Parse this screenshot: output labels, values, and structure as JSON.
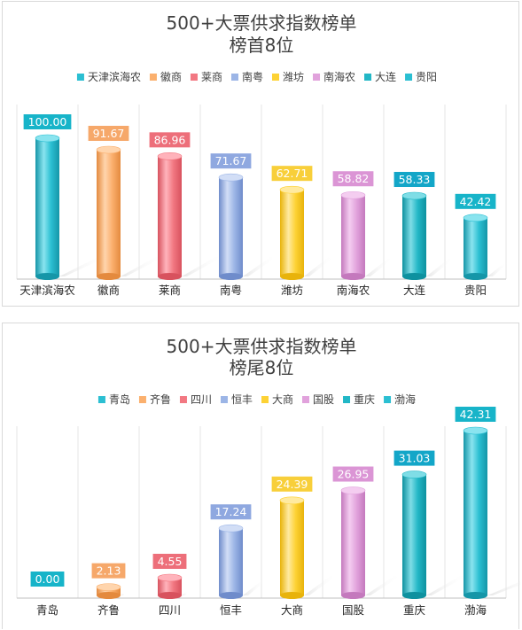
{
  "colors": {
    "cyan": {
      "light": "#8ae4ef",
      "mid": "#2bbfd2",
      "dark": "#1596a8",
      "label": "#17b4c9"
    },
    "orange": {
      "light": "#ffd5ad",
      "mid": "#fbb06e",
      "dark": "#e48a3e",
      "label": "#f6a86a"
    },
    "red": {
      "light": "#ffb3bb",
      "mid": "#f27882",
      "dark": "#d8525e",
      "label": "#ed6f7a"
    },
    "blue": {
      "light": "#d2def6",
      "mid": "#9cb5e6",
      "dark": "#6f8ccb",
      "label": "#8fa8e0"
    },
    "yellow": {
      "light": "#ffeaa0",
      "mid": "#fdd235",
      "dark": "#e8b30b",
      "label": "#f8cf3a"
    },
    "purple": {
      "light": "#f4cdf0",
      "mid": "#e1a2dc",
      "dark": "#c479bd",
      "label": "#db95d5"
    },
    "teal": {
      "light": "#7fdde6",
      "mid": "#22b7c6",
      "dark": "#0e919f",
      "label": "#13a6c8"
    }
  },
  "chart_data": [
    {
      "type": "bar",
      "title": "500+大票供求指数榜单",
      "subtitle": "榜首8位",
      "categories": [
        "天津滨海农",
        "徽商",
        "莱商",
        "南粤",
        "潍坊",
        "南海农",
        "大连",
        "贵阳"
      ],
      "values": [
        100.0,
        91.67,
        86.96,
        71.67,
        62.71,
        58.82,
        58.33,
        42.42
      ],
      "value_labels": [
        "100.00",
        "91.67",
        "86.96",
        "71.67",
        "62.71",
        "58.82",
        "58.33",
        "42.42"
      ],
      "bar_colors": [
        "cyan",
        "orange",
        "red",
        "blue",
        "yellow",
        "purple",
        "teal",
        "cyan"
      ],
      "legend": [
        "天津滨海农",
        "徽商",
        "莱商",
        "南粤",
        "潍坊",
        "南海农",
        "大连",
        "贵阳"
      ],
      "legend_position": "top",
      "ylim": [
        0,
        100
      ],
      "grid": "vertical"
    },
    {
      "type": "bar",
      "title": "500+大票供求指数榜单",
      "subtitle": "榜尾8位",
      "categories": [
        "青岛",
        "齐鲁",
        "四川",
        "恒丰",
        "大商",
        "国股",
        "重庆",
        "渤海"
      ],
      "values": [
        0.0,
        2.13,
        4.55,
        17.24,
        24.39,
        26.95,
        31.03,
        42.31
      ],
      "value_labels": [
        "0.00",
        "2.13",
        "4.55",
        "17.24",
        "24.39",
        "26.95",
        "31.03",
        "42.31"
      ],
      "bar_colors": [
        "cyan",
        "orange",
        "red",
        "blue",
        "yellow",
        "purple",
        "teal",
        "cyan"
      ],
      "legend": [
        "青岛",
        "齐鲁",
        "四川",
        "恒丰",
        "大商",
        "国股",
        "重庆",
        "渤海"
      ],
      "legend_position": "top",
      "ylim": [
        0,
        42.31
      ],
      "grid": "vertical"
    }
  ]
}
